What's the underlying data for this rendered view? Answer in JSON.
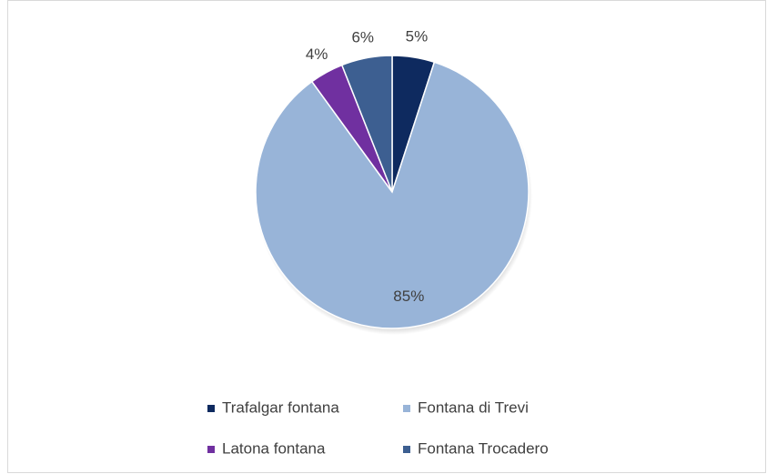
{
  "chart_data": {
    "type": "pie",
    "categories": [
      "Trafalgar fontana",
      "Fontana di Trevi",
      "Latona fontana",
      "Fontana Trocadero"
    ],
    "values": [
      5,
      85,
      4,
      6
    ],
    "value_labels": [
      "5%",
      "85%",
      "4%",
      "6%"
    ],
    "colors": [
      "#0e2a5f",
      "#98b4d8",
      "#7030a0",
      "#3d5f91"
    ],
    "legend": "bottom"
  }
}
